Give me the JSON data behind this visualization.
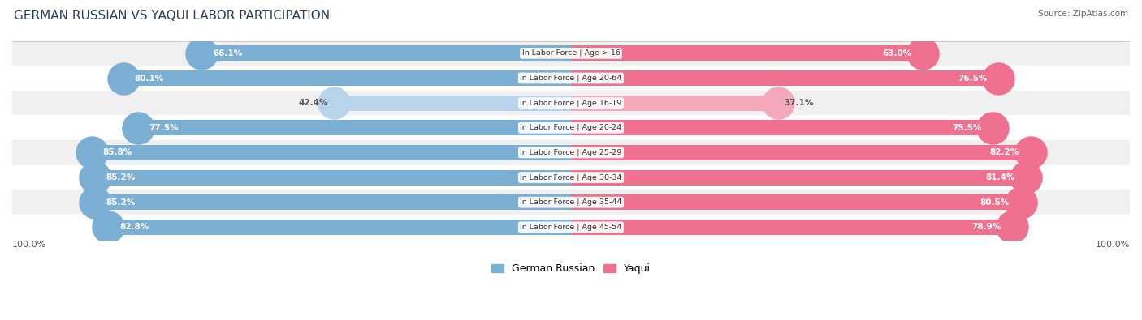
{
  "title": "GERMAN RUSSIAN VS YAQUI LABOR PARTICIPATION",
  "source": "Source: ZipAtlas.com",
  "categories": [
    "In Labor Force | Age > 16",
    "In Labor Force | Age 20-64",
    "In Labor Force | Age 16-19",
    "In Labor Force | Age 20-24",
    "In Labor Force | Age 25-29",
    "In Labor Force | Age 30-34",
    "In Labor Force | Age 35-44",
    "In Labor Force | Age 45-54"
  ],
  "german_russian": [
    66.1,
    80.1,
    42.4,
    77.5,
    85.8,
    85.2,
    85.2,
    82.8
  ],
  "yaqui": [
    63.0,
    76.5,
    37.1,
    75.5,
    82.2,
    81.4,
    80.5,
    78.9
  ],
  "german_russian_color": "#7bafd4",
  "german_russian_light_color": "#b8d4ec",
  "yaqui_color": "#f07090",
  "yaqui_light_color": "#f4a8bc",
  "row_bg_light": "#f0f0f0",
  "row_bg_white": "#ffffff",
  "label_fontsize": 7.5,
  "title_fontsize": 11,
  "legend_fontsize": 9,
  "max_value": 100.0,
  "bar_height": 0.62
}
